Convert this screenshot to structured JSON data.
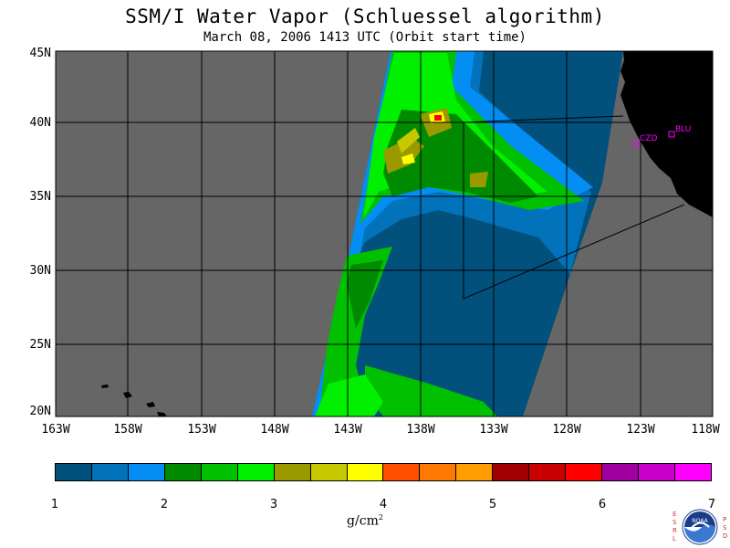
{
  "title": "SSM/I Water Vapor (Schluessel algorithm)",
  "subtitle": "March 08, 2006  1413 UTC  (Orbit start time)",
  "map": {
    "lat_labels": [
      "45N",
      "40N",
      "35N",
      "30N",
      "25N",
      "20N"
    ],
    "lon_labels": [
      "163W",
      "158W",
      "153W",
      "148W",
      "143W",
      "138W",
      "133W",
      "128W",
      "123W",
      "118W"
    ],
    "stations": [
      {
        "id": "CZD",
        "label": "CZD"
      },
      {
        "id": "BLU",
        "label": "BLU"
      }
    ],
    "colors": {
      "nodata": "#666666",
      "land": "#000000",
      "grid": "#000000",
      "station": "#ff00ff"
    }
  },
  "colorbar": {
    "ticks": [
      "1",
      "2",
      "3",
      "4",
      "5",
      "6",
      "7"
    ],
    "colors": [
      "#02507c",
      "#0273ba",
      "#048ef3",
      "#008a00",
      "#00c000",
      "#00f000",
      "#9a9a00",
      "#c8c800",
      "#ffff00",
      "#ff5000",
      "#ff7800",
      "#ff9c00",
      "#a00000",
      "#c80000",
      "#ff0000",
      "#a000a0",
      "#c800c8",
      "#ff00ff"
    ],
    "units": "g/cm",
    "units_exp": "2"
  },
  "logo": {
    "left_letters": [
      "E",
      "S",
      "R",
      "L"
    ],
    "right_letters": [
      "P",
      "S",
      "D"
    ],
    "badge": "NOAA"
  }
}
